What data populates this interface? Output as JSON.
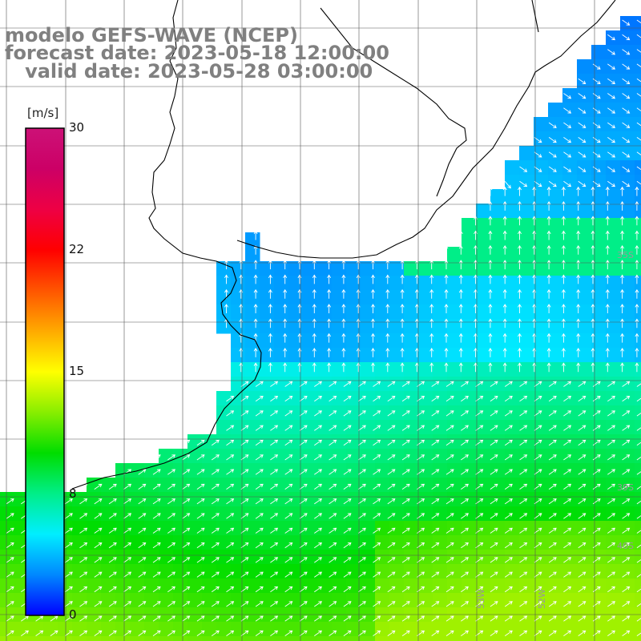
{
  "title": {
    "line1": "modelo GEFS-WAVE (NCEP)",
    "line2": "forecast date: 2023-05-18 12:00:00",
    "line3": "   valid date: 2023-05-28 03:00:00"
  },
  "colorbar": {
    "unit": "[m/s]",
    "ticks": [
      "30",
      "22",
      "15",
      "8",
      "0"
    ],
    "range": [
      0,
      30
    ],
    "colors": [
      "#0000ff",
      "#0088ff",
      "#00eeff",
      "#00ee88",
      "#00dd00",
      "#88ee00",
      "#ffff00",
      "#ffaa00",
      "#ff5500",
      "#ff0000",
      "#ee0044",
      "#cc0066",
      "#cc1177"
    ]
  },
  "lat_labels": [
    "35S",
    "39S",
    "40S"
  ],
  "lon_labels": [
    "53W",
    "52W"
  ],
  "colors": {
    "land": "#ffffff",
    "coast": "#000000",
    "grid": "#555555",
    "arrow": "#ffffff"
  }
}
